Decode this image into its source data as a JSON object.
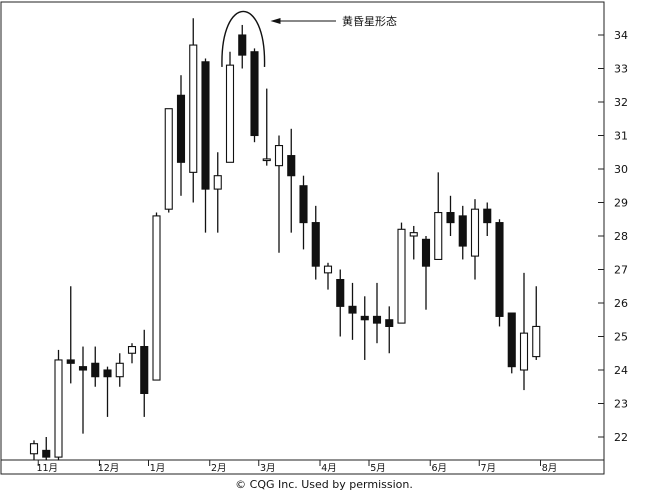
{
  "chart_data": {
    "type": "candlestick",
    "title": "",
    "xlabel": "",
    "ylabel": "",
    "ylim": [
      21.2,
      35.5
    ],
    "y_ticks": [
      22,
      23,
      24,
      25,
      26,
      27,
      28,
      29,
      30,
      31,
      32,
      33,
      34
    ],
    "grid": false,
    "axis_side": "right",
    "months": [
      {
        "label": "11月",
        "index": 1
      },
      {
        "label": "12月",
        "index": 6
      },
      {
        "label": "1月",
        "index": 10
      },
      {
        "label": "2月",
        "index": 15
      },
      {
        "label": "3月",
        "index": 19
      },
      {
        "label": "4月",
        "index": 24
      },
      {
        "label": "5月",
        "index": 28
      },
      {
        "label": "6月",
        "index": 33
      },
      {
        "label": "7月",
        "index": 37
      },
      {
        "label": "8月",
        "index": 42
      }
    ],
    "candles": [
      {
        "i": 0,
        "open": 21.5,
        "high": 21.9,
        "low": 21.3,
        "close": 21.8
      },
      {
        "i": 1,
        "open": 21.6,
        "high": 22.0,
        "low": 21.3,
        "close": 21.4
      },
      {
        "i": 2,
        "open": 21.4,
        "high": 24.6,
        "low": 21.3,
        "close": 24.3
      },
      {
        "i": 3,
        "open": 24.3,
        "high": 26.5,
        "low": 23.6,
        "close": 24.2
      },
      {
        "i": 4,
        "open": 24.1,
        "high": 24.7,
        "low": 22.1,
        "close": 24.0
      },
      {
        "i": 5,
        "open": 24.2,
        "high": 24.7,
        "low": 23.5,
        "close": 23.8
      },
      {
        "i": 6,
        "open": 24.0,
        "high": 24.1,
        "low": 22.6,
        "close": 23.8
      },
      {
        "i": 7,
        "open": 23.8,
        "high": 24.5,
        "low": 23.5,
        "close": 24.2
      },
      {
        "i": 8,
        "open": 24.5,
        "high": 24.8,
        "low": 24.2,
        "close": 24.7
      },
      {
        "i": 9,
        "open": 24.7,
        "high": 25.2,
        "low": 22.6,
        "close": 23.3
      },
      {
        "i": 10,
        "open": 23.7,
        "high": 28.7,
        "low": 23.7,
        "close": 28.6
      },
      {
        "i": 11,
        "open": 28.8,
        "high": 31.8,
        "low": 28.7,
        "close": 31.8
      },
      {
        "i": 12,
        "open": 32.2,
        "high": 32.8,
        "low": 29.2,
        "close": 30.2
      },
      {
        "i": 13,
        "open": 29.9,
        "high": 34.5,
        "low": 29.0,
        "close": 33.7
      },
      {
        "i": 14,
        "open": 33.2,
        "high": 33.3,
        "low": 28.1,
        "close": 29.4
      },
      {
        "i": 15,
        "open": 29.4,
        "high": 30.5,
        "low": 28.1,
        "close": 29.8
      },
      {
        "i": 16,
        "open": 30.2,
        "high": 33.5,
        "low": 30.2,
        "close": 33.1
      },
      {
        "i": 17,
        "open": 34.0,
        "high": 34.3,
        "low": 33.0,
        "close": 33.4
      },
      {
        "i": 18,
        "open": 33.5,
        "high": 33.6,
        "low": 30.8,
        "close": 31.0
      },
      {
        "i": 19,
        "open": 30.3,
        "high": 32.4,
        "low": 30.1,
        "close": 30.3
      },
      {
        "i": 20,
        "open": 30.1,
        "high": 31.0,
        "low": 27.5,
        "close": 30.7
      },
      {
        "i": 21,
        "open": 30.4,
        "high": 31.2,
        "low": 28.1,
        "close": 29.8
      },
      {
        "i": 22,
        "open": 29.5,
        "high": 29.8,
        "low": 27.6,
        "close": 28.4
      },
      {
        "i": 23,
        "open": 28.4,
        "high": 28.9,
        "low": 26.7,
        "close": 27.1
      },
      {
        "i": 24,
        "open": 26.9,
        "high": 27.2,
        "low": 26.4,
        "close": 27.1
      },
      {
        "i": 25,
        "open": 26.7,
        "high": 27.0,
        "low": 25.0,
        "close": 25.9
      },
      {
        "i": 26,
        "open": 25.9,
        "high": 26.6,
        "low": 24.9,
        "close": 25.7
      },
      {
        "i": 27,
        "open": 25.6,
        "high": 26.2,
        "low": 24.3,
        "close": 25.5
      },
      {
        "i": 28,
        "open": 25.6,
        "high": 26.6,
        "low": 24.8,
        "close": 25.4
      },
      {
        "i": 29,
        "open": 25.5,
        "high": 25.9,
        "low": 24.5,
        "close": 25.3
      },
      {
        "i": 30,
        "open": 25.4,
        "high": 28.4,
        "low": 25.4,
        "close": 28.2
      },
      {
        "i": 31,
        "open": 28.0,
        "high": 28.3,
        "low": 27.3,
        "close": 28.1
      },
      {
        "i": 32,
        "open": 27.9,
        "high": 28.0,
        "low": 25.8,
        "close": 27.1
      },
      {
        "i": 33,
        "open": 27.3,
        "high": 29.9,
        "low": 27.3,
        "close": 28.7
      },
      {
        "i": 34,
        "open": 28.7,
        "high": 29.2,
        "low": 28.0,
        "close": 28.4
      },
      {
        "i": 35,
        "open": 28.6,
        "high": 28.9,
        "low": 27.3,
        "close": 27.7
      },
      {
        "i": 36,
        "open": 27.4,
        "high": 29.1,
        "low": 26.7,
        "close": 28.8
      },
      {
        "i": 37,
        "open": 28.8,
        "high": 29.0,
        "low": 28.0,
        "close": 28.4
      },
      {
        "i": 38,
        "open": 28.4,
        "high": 28.5,
        "low": 25.3,
        "close": 25.6
      },
      {
        "i": 39,
        "open": 25.7,
        "high": 25.7,
        "low": 23.9,
        "close": 24.1
      },
      {
        "i": 40,
        "open": 24.0,
        "high": 26.9,
        "low": 23.4,
        "close": 25.1
      },
      {
        "i": 41,
        "open": 24.4,
        "high": 26.5,
        "low": 24.3,
        "close": 25.3
      }
    ],
    "annotation": {
      "text": "黄昏星形态",
      "candle_indices": [
        16,
        17,
        18
      ]
    }
  },
  "credit": "© CQG Inc. Used by permission."
}
